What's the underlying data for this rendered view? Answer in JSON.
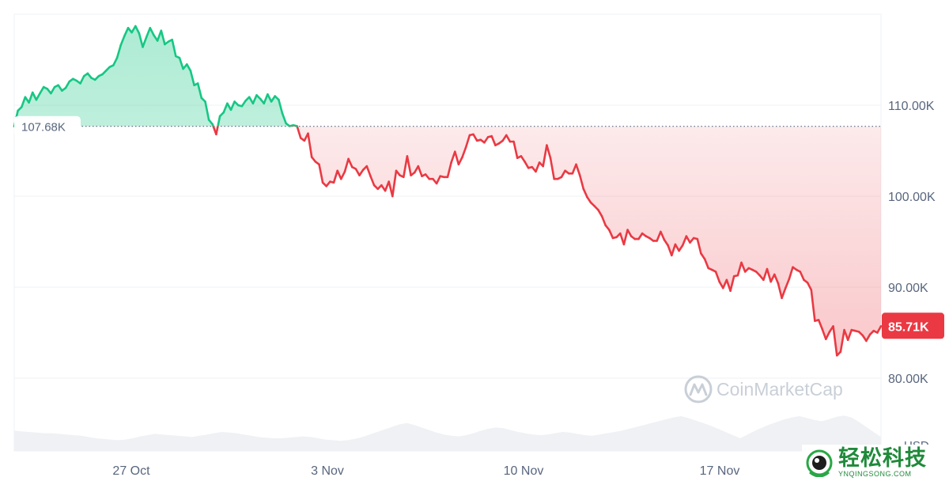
{
  "chart_data": {
    "type": "line",
    "title": "",
    "ylabel": "USD",
    "xlabel": "",
    "y_ticks": [
      "110.00K",
      "100.00K",
      "90.00K",
      "80.00K"
    ],
    "y_tick_values": [
      110000,
      100000,
      90000,
      80000
    ],
    "x_ticks": [
      "27 Oct",
      "3 Nov",
      "10 Nov",
      "17 Nov"
    ],
    "ylim": [
      72000,
      120000
    ],
    "reference_line": {
      "value": 107680,
      "label": "107.68K"
    },
    "current_value": {
      "value": 85710,
      "label": "85.71K"
    },
    "colors": {
      "up": "#16c784",
      "down": "#ea3943",
      "volume": "#eff1f4",
      "grid": "#eff2f5"
    },
    "series": [
      {
        "values": [
          107680,
          109400,
          109800,
          110900,
          110300,
          111400,
          110600,
          111300,
          112000,
          111800,
          111300,
          112000,
          112200,
          111600,
          111900,
          112600,
          112900,
          112700,
          112400,
          113200,
          113500,
          113000,
          112800,
          113200,
          113400,
          113800,
          114200,
          114400,
          115200,
          116600,
          117600,
          118500,
          118000,
          118700,
          117900,
          116400,
          117500,
          118500,
          117700,
          117100,
          118200,
          116700,
          117000,
          117200,
          115400,
          115200,
          114000,
          114500,
          113800,
          112200,
          112400,
          110800,
          110400,
          108400,
          107900,
          106800,
          108800,
          109200,
          110200,
          109500,
          110400,
          110000,
          109900,
          110500,
          110900,
          110200,
          111100,
          110700,
          110200,
          111200,
          110400,
          111000,
          110600,
          109100,
          108000,
          107700,
          107800,
          107700,
          106400,
          106100,
          106900,
          104300,
          103800,
          103500,
          101500,
          101100,
          101600,
          101500,
          102800,
          101900,
          102700,
          104100,
          103200,
          103000,
          102300,
          102900,
          103300,
          102200,
          101200,
          100800,
          101200,
          100600,
          101600,
          100000,
          102800,
          102300,
          102100,
          104400,
          102300,
          102600,
          103300,
          102200,
          102400,
          101900,
          101900,
          101400,
          102200,
          102100,
          102100,
          103700,
          104900,
          103500,
          104300,
          105400,
          106700,
          106800,
          106100,
          106200,
          105900,
          106500,
          106600,
          105600,
          105800,
          106100,
          106700,
          106000,
          106000,
          104200,
          104400,
          103800,
          103100,
          103200,
          102700,
          103700,
          103300,
          105600,
          104200,
          101900,
          101900,
          102100,
          102800,
          102500,
          102500,
          103500,
          102300,
          100800,
          99900,
          99300,
          98900,
          98500,
          97800,
          96800,
          96300,
          95400,
          95500,
          95900,
          94700,
          96300,
          95600,
          95300,
          95300,
          95900,
          95600,
          95400,
          95100,
          95100,
          96100,
          95200,
          94600,
          93500,
          94700,
          94000,
          94600,
          95600,
          94900,
          95400,
          95300,
          93700,
          93100,
          92100,
          91900,
          91700,
          90600,
          89900,
          90800,
          89600,
          91200,
          91300,
          92700,
          91700,
          92100,
          91900,
          91700,
          91300,
          90800,
          92000,
          90600,
          91400,
          90400,
          88800,
          89900,
          90900,
          92200,
          91900,
          91700,
          90800,
          90500,
          89700,
          86300,
          86400,
          85400,
          84300,
          85100,
          85700,
          82500,
          82900,
          85300,
          84200,
          85300,
          85200,
          85100,
          84700,
          84100,
          84800,
          85200,
          85000,
          85710
        ]
      }
    ],
    "volume": [
      0.32,
      0.31,
      0.3,
      0.29,
      0.28,
      0.28,
      0.27,
      0.26,
      0.25,
      0.24,
      0.22,
      0.2,
      0.19,
      0.18,
      0.17,
      0.18,
      0.2,
      0.23,
      0.25,
      0.27,
      0.26,
      0.25,
      0.24,
      0.23,
      0.22,
      0.24,
      0.26,
      0.28,
      0.3,
      0.29,
      0.28,
      0.26,
      0.24,
      0.22,
      0.21,
      0.2,
      0.2,
      0.21,
      0.22,
      0.23,
      0.22,
      0.2,
      0.18,
      0.17,
      0.16,
      0.17,
      0.19,
      0.22,
      0.26,
      0.3,
      0.34,
      0.38,
      0.42,
      0.44,
      0.41,
      0.37,
      0.33,
      0.29,
      0.26,
      0.24,
      0.23,
      0.25,
      0.28,
      0.32,
      0.35,
      0.37,
      0.36,
      0.33,
      0.3,
      0.28,
      0.26,
      0.25,
      0.26,
      0.28,
      0.3,
      0.29,
      0.27,
      0.25,
      0.24,
      0.26,
      0.28,
      0.3,
      0.32,
      0.35,
      0.38,
      0.41,
      0.44,
      0.47,
      0.5,
      0.53,
      0.55,
      0.52,
      0.48,
      0.44,
      0.4,
      0.35,
      0.3,
      0.25,
      0.2,
      0.26,
      0.32,
      0.37,
      0.42,
      0.46,
      0.5,
      0.53,
      0.55,
      0.52,
      0.49,
      0.47,
      0.5,
      0.54,
      0.56,
      0.53,
      0.46,
      0.38,
      0.3,
      0.22
    ],
    "volume_unit_label": "USD",
    "watermark": "CoinMarketCap"
  },
  "site_badge": {
    "cn": "轻松科技",
    "en": "YNQINGSONG.COM"
  }
}
